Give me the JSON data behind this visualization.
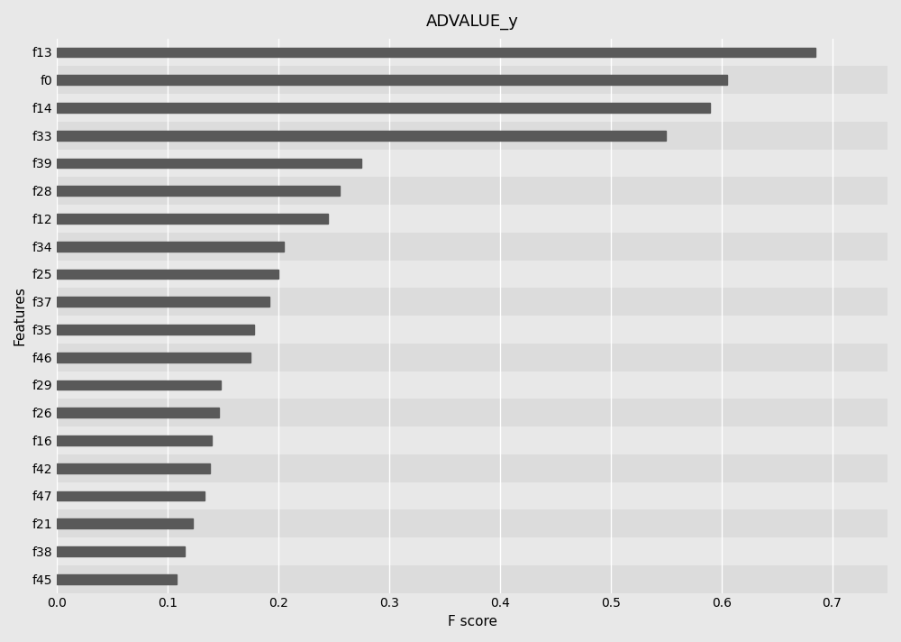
{
  "title": "ADVALUE_y",
  "xlabel": "F score",
  "ylabel": "Features",
  "features": [
    "f13",
    "f0",
    "f14",
    "f33",
    "f39",
    "f28",
    "f12",
    "f34",
    "f25",
    "f37",
    "f35",
    "f46",
    "f29",
    "f26",
    "f16",
    "f42",
    "f47",
    "f21",
    "f38",
    "f45"
  ],
  "values": [
    0.685,
    0.605,
    0.59,
    0.55,
    0.275,
    0.255,
    0.245,
    0.205,
    0.2,
    0.192,
    0.178,
    0.175,
    0.148,
    0.146,
    0.14,
    0.138,
    0.133,
    0.123,
    0.115,
    0.108
  ],
  "bar_color": "#595959",
  "bg_color_light": "#e8e8e8",
  "bg_color_dark": "#dcdcdc",
  "grid_color": "#ffffff",
  "xlim": [
    0.0,
    0.75
  ],
  "xticks": [
    0.0,
    0.1,
    0.2,
    0.3,
    0.4,
    0.5,
    0.6,
    0.7
  ],
  "bar_height": 0.35,
  "title_fontsize": 13,
  "axis_label_fontsize": 11,
  "tick_fontsize": 10
}
